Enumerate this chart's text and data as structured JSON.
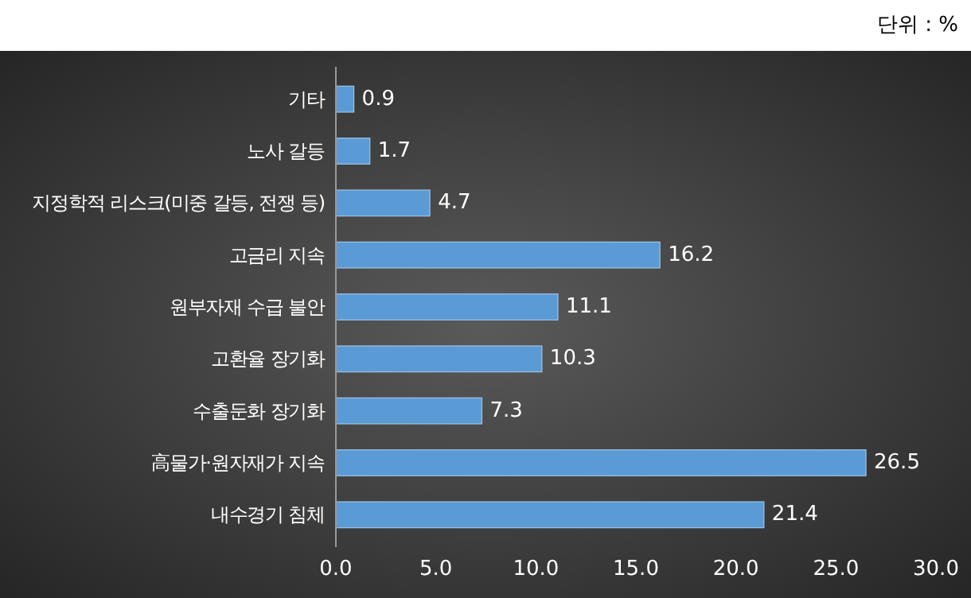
{
  "chart_data": {
    "type": "bar",
    "orientation": "horizontal",
    "categories": [
      "기타",
      "노사 갈등",
      "지정학적 리스크(미중 갈등, 전쟁 등)",
      "고금리 지속",
      "원부자재 수급 불안",
      "고환율 장기화",
      "수출둔화 장기화",
      "高물가·원자재가 지속",
      "내수경기 침체"
    ],
    "values": [
      0.9,
      1.7,
      4.7,
      16.2,
      11.1,
      10.3,
      7.3,
      26.5,
      21.4
    ],
    "color": "#5b9bd5",
    "xlim": [
      0,
      30
    ],
    "xticks": [
      {
        "value": 0,
        "label": "0.0"
      },
      {
        "value": 5,
        "label": "5.0"
      },
      {
        "value": 10,
        "label": "10.0"
      },
      {
        "value": 15,
        "label": "15.0"
      },
      {
        "value": 20,
        "label": "20.0"
      },
      {
        "value": 25,
        "label": "25.0"
      },
      {
        "value": 30,
        "label": "30.0"
      }
    ],
    "data_labels": true,
    "annotations": [
      "단위 : %"
    ]
  }
}
